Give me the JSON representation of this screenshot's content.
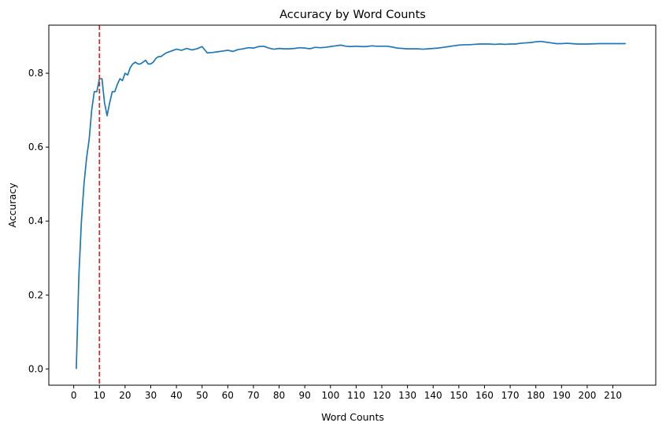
{
  "chart_data": {
    "type": "line",
    "title": "Accuracy by Word Counts",
    "xlabel": "Word Counts",
    "ylabel": "Accuracy",
    "xlim": [
      -9.7,
      226.7
    ],
    "ylim": [
      -0.044,
      0.93
    ],
    "xticks": [
      0,
      10,
      20,
      30,
      40,
      50,
      60,
      70,
      80,
      90,
      100,
      110,
      120,
      130,
      140,
      150,
      160,
      170,
      180,
      190,
      200,
      210
    ],
    "xtick_labels": [
      "0",
      "10",
      "20",
      "30",
      "40",
      "50",
      "60",
      "70",
      "80",
      "90",
      "100",
      "110",
      "120",
      "130",
      "140",
      "150",
      "160",
      "170",
      "180",
      "190",
      "200",
      "210"
    ],
    "yticks": [
      0.0,
      0.2,
      0.4,
      0.6,
      0.8
    ],
    "ytick_labels": [
      "0.0",
      "0.2",
      "0.4",
      "0.6",
      "0.8"
    ],
    "grid": false,
    "line_color": "#1f77b4",
    "reference_line": {
      "orientation": "vertical",
      "x": 10,
      "style": "dashed",
      "color": "#d62728"
    },
    "series": [
      {
        "x": [
          1,
          2,
          3,
          4,
          5,
          6,
          7,
          8,
          9,
          10,
          11,
          12,
          13,
          14,
          15,
          16,
          17,
          18,
          19,
          20,
          21,
          22,
          23,
          24,
          25,
          26,
          27,
          28,
          29,
          30,
          31,
          32,
          33,
          34,
          35,
          36,
          38,
          40,
          42,
          44,
          46,
          48,
          50,
          52,
          54,
          56,
          58,
          60,
          62,
          64,
          66,
          68,
          70,
          72,
          74,
          76,
          78,
          80,
          82,
          84,
          86,
          88,
          90,
          92,
          94,
          96,
          98,
          100,
          102,
          104,
          106,
          108,
          110,
          112,
          114,
          116,
          118,
          120,
          122,
          124,
          126,
          128,
          130,
          132,
          134,
          136,
          138,
          140,
          142,
          144,
          146,
          148,
          150,
          152,
          154,
          156,
          158,
          160,
          162,
          164,
          166,
          168,
          170,
          172,
          174,
          176,
          178,
          180,
          182,
          184,
          186,
          188,
          190,
          192,
          194,
          196,
          198,
          200,
          205,
          210,
          215
        ],
        "y": [
          0.0,
          0.25,
          0.4,
          0.5,
          0.57,
          0.62,
          0.7,
          0.75,
          0.75,
          0.785,
          0.785,
          0.72,
          0.685,
          0.72,
          0.75,
          0.75,
          0.77,
          0.785,
          0.78,
          0.8,
          0.795,
          0.815,
          0.825,
          0.83,
          0.825,
          0.825,
          0.83,
          0.835,
          0.825,
          0.825,
          0.83,
          0.84,
          0.845,
          0.845,
          0.85,
          0.855,
          0.86,
          0.865,
          0.862,
          0.867,
          0.863,
          0.866,
          0.872,
          0.855,
          0.856,
          0.858,
          0.86,
          0.862,
          0.859,
          0.864,
          0.866,
          0.869,
          0.868,
          0.872,
          0.873,
          0.868,
          0.865,
          0.867,
          0.866,
          0.866,
          0.867,
          0.869,
          0.868,
          0.866,
          0.87,
          0.869,
          0.87,
          0.872,
          0.874,
          0.876,
          0.873,
          0.872,
          0.873,
          0.872,
          0.872,
          0.874,
          0.873,
          0.873,
          0.873,
          0.871,
          0.868,
          0.867,
          0.866,
          0.866,
          0.866,
          0.865,
          0.866,
          0.867,
          0.868,
          0.87,
          0.872,
          0.874,
          0.876,
          0.877,
          0.877,
          0.878,
          0.879,
          0.879,
          0.879,
          0.878,
          0.879,
          0.878,
          0.879,
          0.879,
          0.881,
          0.882,
          0.883,
          0.885,
          0.886,
          0.884,
          0.882,
          0.88,
          0.88,
          0.881,
          0.88,
          0.879,
          0.879,
          0.879,
          0.88,
          0.88,
          0.88
        ]
      }
    ]
  }
}
